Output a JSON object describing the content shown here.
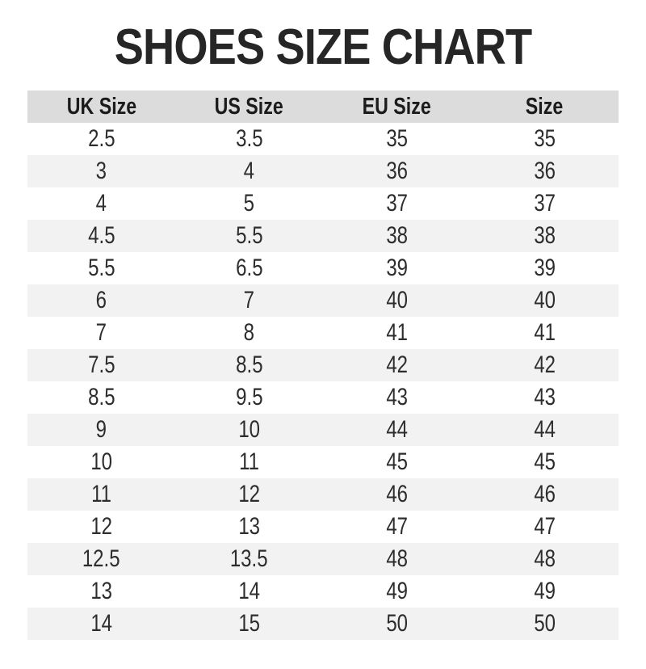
{
  "page": {
    "title": "SHOES SIZE CHART"
  },
  "colors": {
    "background": "#ffffff",
    "header_bg": "#dcdcdc",
    "stripe_bg": "#f2f2f2",
    "title_text": "#262626",
    "header_text": "#1b1b1b",
    "cell_text": "#2d2d2d"
  },
  "chart_data": {
    "type": "table",
    "title": "SHOES SIZE CHART",
    "columns": [
      "UK Size",
      "US Size",
      "EU Size",
      "Size"
    ],
    "rows": [
      [
        "2.5",
        "3.5",
        "35",
        "35"
      ],
      [
        "3",
        "4",
        "36",
        "36"
      ],
      [
        "4",
        "5",
        "37",
        "37"
      ],
      [
        "4.5",
        "5.5",
        "38",
        "38"
      ],
      [
        "5.5",
        "6.5",
        "39",
        "39"
      ],
      [
        "6",
        "7",
        "40",
        "40"
      ],
      [
        "7",
        "8",
        "41",
        "41"
      ],
      [
        "7.5",
        "8.5",
        "42",
        "42"
      ],
      [
        "8.5",
        "9.5",
        "43",
        "43"
      ],
      [
        "9",
        "10",
        "44",
        "44"
      ],
      [
        "10",
        "11",
        "45",
        "45"
      ],
      [
        "11",
        "12",
        "46",
        "46"
      ],
      [
        "12",
        "13",
        "47",
        "47"
      ],
      [
        "12.5",
        "13.5",
        "48",
        "48"
      ],
      [
        "13",
        "14",
        "49",
        "49"
      ],
      [
        "14",
        "15",
        "50",
        "50"
      ]
    ],
    "layout": {
      "striped": true,
      "first_data_row_background": "white",
      "stripe_background": "#f2f2f2",
      "header_background": "#dcdcdc",
      "columns_equal_width": true,
      "text_align": "center"
    }
  }
}
